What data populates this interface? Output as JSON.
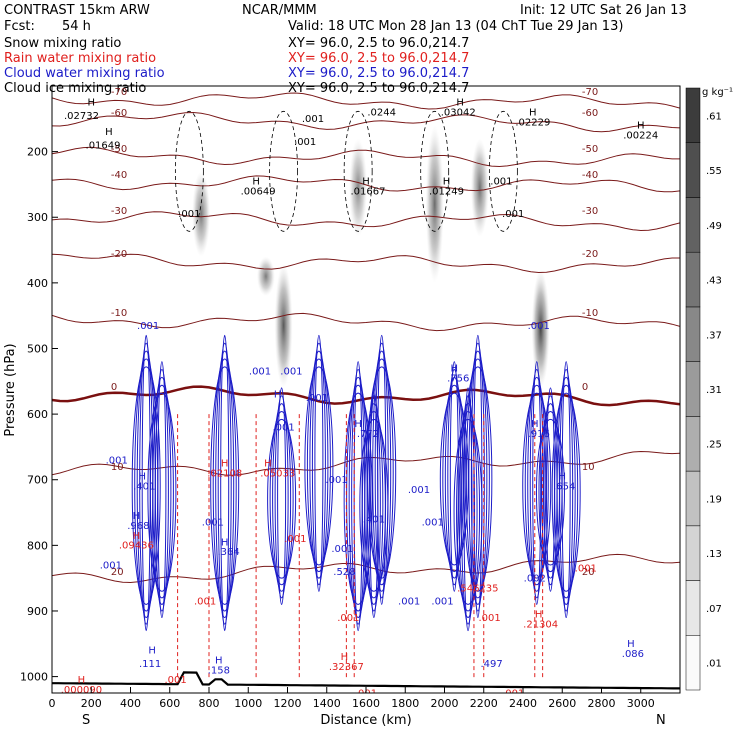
{
  "header": {
    "model": "CONTRAST 15km ARW",
    "center": "NCAR/MMM",
    "init": "Init: 12 UTC Sat 26 Jan 13",
    "fcst_label": "Fcst:",
    "fcst_value": "54 h",
    "valid": "Valid: 18 UTC Mon 28 Jan 13 (04 ChT Tue 29 Jan 13)"
  },
  "legend": [
    {
      "name": "Snow mixing ratio",
      "xy": "XY=  96.0,  2.5 to  96.0,214.7",
      "color": "#000000"
    },
    {
      "name": "Rain water mixing ratio",
      "xy": "XY=  96.0,  2.5 to  96.0,214.7",
      "color": "#e0201e"
    },
    {
      "name": "Cloud water mixing ratio",
      "xy": "XY=  96.0,  2.5 to  96.0,214.7",
      "color": "#1c1cc8"
    },
    {
      "name": "Cloud ice mixing ratio",
      "xy": "XY=  96.0,  2.5 to  96.0,214.7",
      "color": "#000000"
    }
  ],
  "chart_data": {
    "type": "heatmap",
    "xlabel": "Distance (km)",
    "ylabel": "Pressure (hPa)",
    "x_ticks": [
      0,
      200,
      400,
      600,
      800,
      1000,
      1200,
      1400,
      1600,
      1800,
      2000,
      2200,
      2400,
      2600,
      2800,
      3000
    ],
    "xlim": [
      0,
      3200
    ],
    "y_ticks": [
      200,
      300,
      400,
      500,
      600,
      700,
      800,
      900,
      1000
    ],
    "ylim": [
      1025,
      100
    ],
    "end_labels": {
      "left": "S",
      "right": "N"
    },
    "colorbar": {
      "unit": "g kg⁻¹",
      "ticks": [
        ".01",
        ".07",
        ".13",
        ".19",
        ".25",
        ".31",
        ".37",
        ".43",
        ".49",
        ".55",
        ".61"
      ]
    },
    "cloud_ice_columns": [
      {
        "x": 760,
        "top": 230,
        "bottom": 360,
        "max": 0.25
      },
      {
        "x": 1090,
        "top": 360,
        "bottom": 420,
        "max": 0.22
      },
      {
        "x": 1180,
        "top": 370,
        "bottom": 560,
        "max": 0.4
      },
      {
        "x": 1560,
        "top": 180,
        "bottom": 330,
        "max": 0.18
      },
      {
        "x": 1950,
        "top": 160,
        "bottom": 400,
        "max": 0.3
      },
      {
        "x": 2180,
        "top": 180,
        "bottom": 330,
        "max": 0.28
      },
      {
        "x": 2490,
        "top": 380,
        "bottom": 560,
        "max": 0.5
      }
    ],
    "isotherms": [
      {
        "label": "-70",
        "p": 118
      },
      {
        "label": "-60",
        "p": 150
      },
      {
        "label": "-50",
        "p": 205
      },
      {
        "label": "-40",
        "p": 245
      },
      {
        "label": "-30",
        "p": 300
      },
      {
        "label": "-20",
        "p": 365
      },
      {
        "label": "-10",
        "p": 455
      },
      {
        "label": "0",
        "p": 568
      },
      {
        "label": "10",
        "p": 690
      },
      {
        "label": "20",
        "p": 850
      }
    ],
    "surface_p": 1010,
    "labels": [
      {
        "t": "H",
        "x": 200,
        "p": 130,
        "c": "black"
      },
      {
        "t": ".02732",
        "x": 150,
        "p": 150,
        "c": "black"
      },
      {
        "t": "H",
        "x": 290,
        "p": 175,
        "c": "black"
      },
      {
        "t": ".01649",
        "x": 260,
        "p": 195,
        "c": "black"
      },
      {
        "t": ".001",
        "x": 1330,
        "p": 155,
        "c": "black"
      },
      {
        "t": ".001",
        "x": 1290,
        "p": 190,
        "c": "black"
      },
      {
        "t": ".0244",
        "x": 1680,
        "p": 145,
        "c": "black"
      },
      {
        "t": "H",
        "x": 2080,
        "p": 130,
        "c": "black"
      },
      {
        "t": ".03042",
        "x": 2070,
        "p": 145,
        "c": "black"
      },
      {
        "t": "H",
        "x": 2450,
        "p": 145,
        "c": "black"
      },
      {
        "t": ".02229",
        "x": 2450,
        "p": 160,
        "c": "black"
      },
      {
        "t": "H",
        "x": 3000,
        "p": 165,
        "c": "black"
      },
      {
        "t": ".00224",
        "x": 3000,
        "p": 180,
        "c": "black"
      },
      {
        "t": "H",
        "x": 1040,
        "p": 250,
        "c": "black"
      },
      {
        "t": ".00649",
        "x": 1050,
        "p": 265,
        "c": "black"
      },
      {
        "t": ".001",
        "x": 700,
        "p": 300,
        "c": "black"
      },
      {
        "t": "H",
        "x": 1600,
        "p": 250,
        "c": "black"
      },
      {
        "t": ".01667",
        "x": 1610,
        "p": 265,
        "c": "black"
      },
      {
        "t": "H",
        "x": 2010,
        "p": 250,
        "c": "black"
      },
      {
        "t": ".01249",
        "x": 2010,
        "p": 265,
        "c": "black"
      },
      {
        "t": ".001",
        "x": 2290,
        "p": 250,
        "c": "black"
      },
      {
        "t": ".001",
        "x": 2350,
        "p": 300,
        "c": "black"
      },
      {
        "t": ".001",
        "x": 490,
        "p": 470,
        "c": "blue"
      },
      {
        "t": ".001",
        "x": 1060,
        "p": 540,
        "c": "blue"
      },
      {
        "t": ".001",
        "x": 1220,
        "p": 540,
        "c": "blue"
      },
      {
        "t": "H",
        "x": 1150,
        "p": 575,
        "c": "blue"
      },
      {
        "t": ".001",
        "x": 1180,
        "p": 625,
        "c": "blue"
      },
      {
        "t": ".001",
        "x": 1350,
        "p": 580,
        "c": "blue"
      },
      {
        "t": "H",
        "x": 2050,
        "p": 535,
        "c": "blue"
      },
      {
        "t": ".756",
        "x": 2070,
        "p": 550,
        "c": "blue"
      },
      {
        "t": ".001",
        "x": 2480,
        "p": 470,
        "c": "blue"
      },
      {
        "t": "H",
        "x": 1560,
        "p": 620,
        "c": "blue"
      },
      {
        "t": ".772",
        "x": 1610,
        "p": 635,
        "c": "blue"
      },
      {
        "t": "H",
        "x": 2460,
        "p": 620,
        "c": "blue"
      },
      {
        "t": ".916",
        "x": 2480,
        "p": 635,
        "c": "blue"
      },
      {
        "t": ".001",
        "x": 330,
        "p": 675,
        "c": "blue"
      },
      {
        "t": "H",
        "x": 460,
        "p": 700,
        "c": "blue"
      },
      {
        "t": ".401",
        "x": 470,
        "p": 715,
        "c": "blue"
      },
      {
        "t": "H",
        "x": 430,
        "p": 760,
        "c": "blue"
      },
      {
        "t": ".968",
        "x": 440,
        "p": 775,
        "c": "blue"
      },
      {
        "t": ".001",
        "x": 300,
        "p": 835,
        "c": "blue"
      },
      {
        "t": ".001",
        "x": 820,
        "p": 770,
        "c": "blue"
      },
      {
        "t": "H",
        "x": 880,
        "p": 800,
        "c": "blue"
      },
      {
        "t": ".364",
        "x": 900,
        "p": 815,
        "c": "blue"
      },
      {
        "t": ".001",
        "x": 1450,
        "p": 705,
        "c": "blue"
      },
      {
        "t": ".401",
        "x": 1640,
        "p": 765,
        "c": "blue"
      },
      {
        "t": ".001",
        "x": 1870,
        "p": 720,
        "c": "blue"
      },
      {
        "t": ".001",
        "x": 1940,
        "p": 770,
        "c": "blue"
      },
      {
        "t": "H",
        "x": 2600,
        "p": 700,
        "c": "blue"
      },
      {
        "t": ".654",
        "x": 2610,
        "p": 715,
        "c": "blue"
      },
      {
        "t": ".528",
        "x": 1490,
        "p": 845,
        "c": "blue"
      },
      {
        "t": ".001",
        "x": 1480,
        "p": 810,
        "c": "blue"
      },
      {
        "t": ".001",
        "x": 1820,
        "p": 890,
        "c": "blue"
      },
      {
        "t": ".001",
        "x": 1990,
        "p": 890,
        "c": "blue"
      },
      {
        "t": ".002",
        "x": 2460,
        "p": 855,
        "c": "blue"
      },
      {
        "t": "H",
        "x": 510,
        "p": 965,
        "c": "blue"
      },
      {
        "t": ".111",
        "x": 500,
        "p": 985,
        "c": "blue"
      },
      {
        "t": "H",
        "x": 850,
        "p": 980,
        "c": "blue"
      },
      {
        "t": ".158",
        "x": 850,
        "p": 995,
        "c": "blue"
      },
      {
        "t": ".497",
        "x": 2240,
        "p": 985,
        "c": "blue"
      },
      {
        "t": "H",
        "x": 2950,
        "p": 955,
        "c": "blue"
      },
      {
        "t": ".086",
        "x": 2960,
        "p": 970,
        "c": "blue"
      },
      {
        "t": "H",
        "x": 880,
        "p": 680,
        "c": "red"
      },
      {
        "t": ".02108",
        "x": 880,
        "p": 695,
        "c": "red"
      },
      {
        "t": "H",
        "x": 1100,
        "p": 680,
        "c": "red"
      },
      {
        "t": ".05033",
        "x": 1150,
        "p": 695,
        "c": "red"
      },
      {
        "t": "H",
        "x": 430,
        "p": 790,
        "c": "red"
      },
      {
        "t": ".09436",
        "x": 430,
        "p": 805,
        "c": "red"
      },
      {
        "t": ".001",
        "x": 1240,
        "p": 795,
        "c": "red"
      },
      {
        "t": ".001",
        "x": 780,
        "p": 890,
        "c": "red"
      },
      {
        "t": ".001",
        "x": 1510,
        "p": 915,
        "c": "red"
      },
      {
        "t": ".546235",
        "x": 2170,
        "p": 870,
        "c": "red"
      },
      {
        "t": ".001",
        "x": 2230,
        "p": 915,
        "c": "red"
      },
      {
        "t": "H",
        "x": 2480,
        "p": 910,
        "c": "red"
      },
      {
        "t": ".21304",
        "x": 2490,
        "p": 925,
        "c": "red"
      },
      {
        "t": ".001",
        "x": 2720,
        "p": 840,
        "c": "red"
      },
      {
        "t": "H",
        "x": 1490,
        "p": 975,
        "c": "red"
      },
      {
        "t": ".32367",
        "x": 1500,
        "p": 990,
        "c": "red"
      },
      {
        "t": "H",
        "x": 150,
        "p": 1010,
        "c": "red"
      },
      {
        "t": ".000090",
        "x": 150,
        "p": 1025,
        "c": "red"
      },
      {
        "t": ".001",
        "x": 630,
        "p": 1010,
        "c": "red"
      },
      {
        "t": ".001",
        "x": 1600,
        "p": 1030,
        "c": "red"
      },
      {
        "t": ".001",
        "x": 2350,
        "p": 1030,
        "c": "red"
      }
    ]
  }
}
